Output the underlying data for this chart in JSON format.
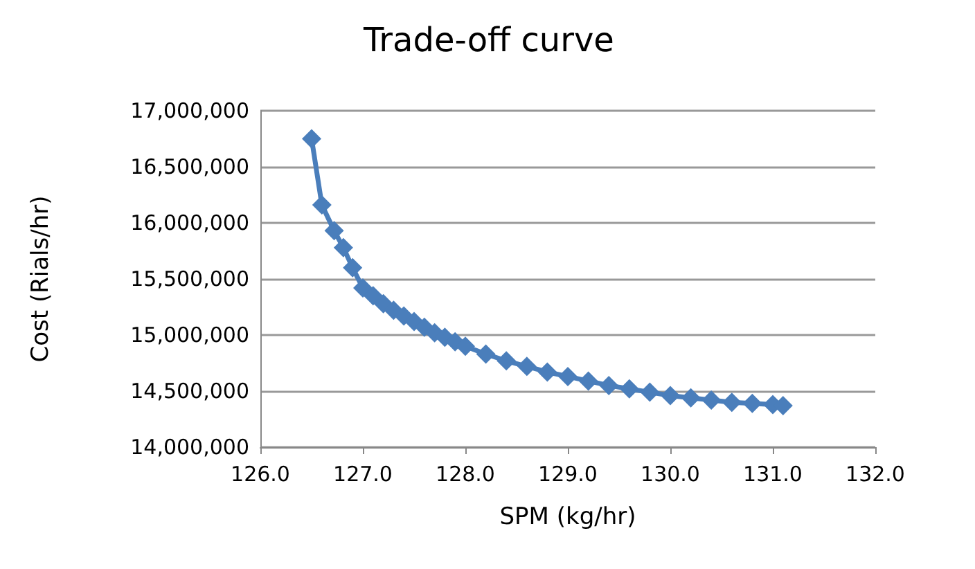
{
  "chart_data": {
    "type": "line",
    "title": "Trade-off curve",
    "xlabel": "SPM (kg/hr)",
    "ylabel": "Cost (Rials/hr)",
    "xlim": [
      126,
      132
    ],
    "xticks": [
      {
        "value": 126,
        "label": "126.0"
      },
      {
        "value": 127,
        "label": "127.0"
      },
      {
        "value": 128,
        "label": "128.0"
      },
      {
        "value": 129,
        "label": "129.0"
      },
      {
        "value": 130,
        "label": "130.0"
      },
      {
        "value": 131,
        "label": "131.0"
      },
      {
        "value": 132,
        "label": "132.0"
      }
    ],
    "ylim": [
      14000000,
      17000000
    ],
    "yticks": [
      {
        "value": 14000000,
        "label": "14,000,000"
      },
      {
        "value": 14500000,
        "label": "14,500,000"
      },
      {
        "value": 15000000,
        "label": "15,000,000"
      },
      {
        "value": 15500000,
        "label": "15,500,000"
      },
      {
        "value": 16000000,
        "label": "16,000,000"
      },
      {
        "value": 16500000,
        "label": "16,500,000"
      },
      {
        "value": 17000000,
        "label": "17,000,000"
      }
    ],
    "grid": "y",
    "marker": "diamond",
    "line_style": "solid",
    "series": [
      {
        "color": "#4a7ebb",
        "x": [
          126.5,
          126.6,
          126.72,
          126.81,
          126.9,
          127.0,
          127.1,
          127.2,
          127.3,
          127.4,
          127.5,
          127.6,
          127.7,
          127.8,
          127.9,
          128.0,
          128.2,
          128.4,
          128.6,
          128.8,
          129.0,
          129.2,
          129.4,
          129.6,
          129.8,
          130.0,
          130.2,
          130.4,
          130.6,
          130.8,
          131.0,
          131.1
        ],
        "values": [
          16750000,
          16160000,
          15930000,
          15780000,
          15600000,
          15420000,
          15350000,
          15280000,
          15220000,
          15170000,
          15120000,
          15070000,
          15020000,
          14980000,
          14940000,
          14900000,
          14830000,
          14770000,
          14720000,
          14670000,
          14630000,
          14590000,
          14550000,
          14520000,
          14490000,
          14460000,
          14440000,
          14420000,
          14400000,
          14390000,
          14380000,
          14370000
        ]
      }
    ]
  }
}
